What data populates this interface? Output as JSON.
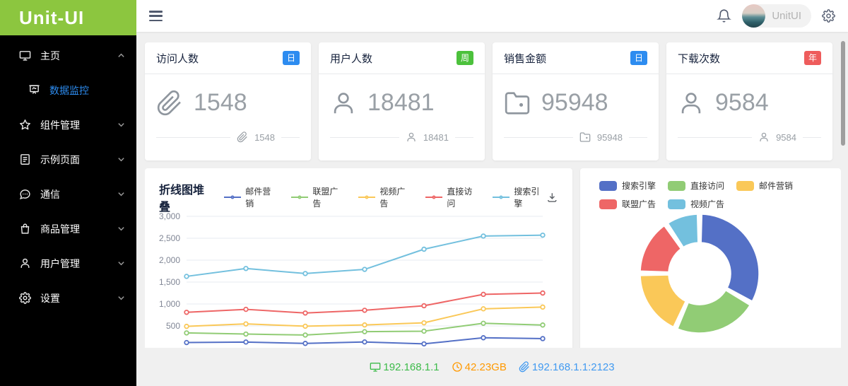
{
  "app": {
    "logo": "Unit-UI",
    "user": "UnitUI"
  },
  "sidebar": {
    "items": [
      {
        "label": "主页",
        "icon": "monitor-icon",
        "state": "expanded"
      },
      {
        "label": "数据监控",
        "icon": "presentation-icon",
        "state": "active-submenu"
      },
      {
        "label": "组件管理",
        "icon": "star-icon",
        "state": "collapsed"
      },
      {
        "label": "示例页面",
        "icon": "document-icon",
        "state": "collapsed"
      },
      {
        "label": "通信",
        "icon": "chat-icon",
        "state": "collapsed"
      },
      {
        "label": "商品管理",
        "icon": "bag-icon",
        "state": "collapsed"
      },
      {
        "label": "用户管理",
        "icon": "user-icon",
        "state": "collapsed"
      },
      {
        "label": "设置",
        "icon": "gear-icon",
        "state": "collapsed"
      }
    ],
    "active_color": "#2d8cf0"
  },
  "stats": {
    "cards": [
      {
        "title": "访问人数",
        "badge": "日",
        "badge_color": "#2d8cf0",
        "icon": "paperclip-icon",
        "value": "1548"
      },
      {
        "title": "用户人数",
        "badge": "周",
        "badge_color": "#4cc13c",
        "icon": "user-icon",
        "value": "18481"
      },
      {
        "title": "销售金额",
        "badge": "日",
        "badge_color": "#2d8cf0",
        "icon": "wallet-icon",
        "value": "95948"
      },
      {
        "title": "下载次数",
        "badge": "年",
        "badge_color": "#ee5c5c",
        "icon": "user-icon",
        "value": "9584"
      }
    ]
  },
  "chart_data": [
    {
      "type": "line",
      "title": "折线图堆叠",
      "stacked": true,
      "x": [
        1,
        2,
        3,
        4,
        5,
        6,
        7
      ],
      "x_labels_visible": false,
      "series": [
        {
          "name": "邮件营销",
          "color": "#5470c6",
          "values": [
            120,
            132,
            101,
            134,
            90,
            230,
            210
          ]
        },
        {
          "name": "联盟广告",
          "color": "#91cc75",
          "values": [
            220,
            182,
            191,
            234,
            290,
            330,
            310
          ]
        },
        {
          "name": "视频广告",
          "color": "#fac858",
          "values": [
            150,
            232,
            201,
            154,
            190,
            330,
            410
          ]
        },
        {
          "name": "直接访问",
          "color": "#ee6666",
          "values": [
            320,
            332,
            301,
            334,
            390,
            330,
            320
          ]
        },
        {
          "name": "搜索引擎",
          "color": "#73c0de",
          "values": [
            820,
            932,
            901,
            934,
            1290,
            1330,
            1320
          ]
        }
      ],
      "ylim": [
        0,
        3000
      ],
      "ytick_step": 500,
      "ytick_labels": [
        "500",
        "1,000",
        "1,500",
        "2,000",
        "2,500",
        "3,000"
      ],
      "grid": true,
      "legend_position": "top"
    },
    {
      "type": "pie",
      "donut": true,
      "slices": [
        {
          "name": "搜索引擎",
          "value": 1048,
          "color": "#5470c6"
        },
        {
          "name": "直接访问",
          "value": 735,
          "color": "#91cc75"
        },
        {
          "name": "邮件营销",
          "value": 580,
          "color": "#fac858"
        },
        {
          "name": "联盟广告",
          "value": 484,
          "color": "#ee6666"
        },
        {
          "name": "视频广告",
          "value": 300,
          "color": "#73c0de"
        }
      ],
      "legend_position": "top"
    }
  ],
  "footer": {
    "items": [
      {
        "icon": "monitor-icon",
        "text": "192.168.1.1",
        "color": "#3dbb4a"
      },
      {
        "icon": "clock-icon",
        "text": "42.23GB",
        "color": "#ff9900"
      },
      {
        "icon": "link-icon",
        "text": "192.168.1.1:2123",
        "color": "#419af1"
      }
    ]
  }
}
